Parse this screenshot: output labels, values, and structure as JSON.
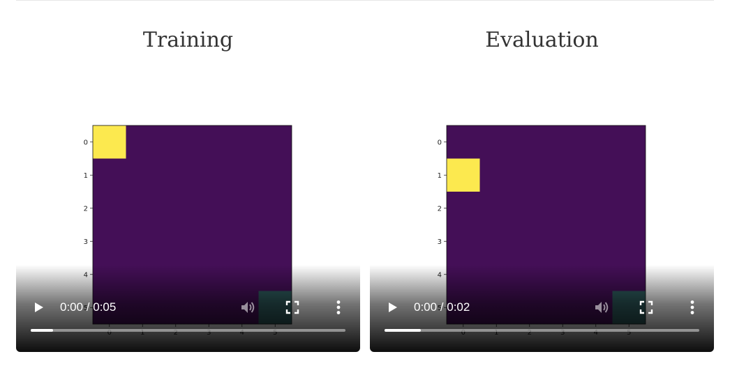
{
  "panels": [
    {
      "title": "Training",
      "player": {
        "time": "0:00 / 0:05",
        "buffered_fraction": 0.07
      },
      "grid": {
        "rows": 6,
        "cols": 6,
        "agent": [
          0,
          0
        ],
        "goal": [
          5,
          5
        ],
        "y_ticks": [
          "0",
          "1",
          "2",
          "3",
          "4",
          "5"
        ],
        "x_ticks": [
          "0",
          "1",
          "2",
          "3",
          "4",
          "5"
        ]
      }
    },
    {
      "title": "Evaluation",
      "player": {
        "time": "0:00 / 0:02",
        "buffered_fraction": 0.115
      },
      "grid": {
        "rows": 6,
        "cols": 6,
        "agent": [
          1,
          0
        ],
        "goal": [
          5,
          5
        ],
        "y_ticks": [
          "0",
          "1",
          "2",
          "3",
          "4",
          "5"
        ],
        "x_ticks": [
          "0",
          "1",
          "2",
          "3",
          "4",
          "5"
        ]
      }
    }
  ],
  "colors": {
    "background_cell": "#440f57",
    "agent_cell": "#fce94f",
    "goal_cell": "#2f5d5f"
  },
  "icons": {
    "play": "play-icon",
    "mute": "volume-icon",
    "fullscreen": "fullscreen-icon",
    "menu": "more-vert-icon"
  }
}
